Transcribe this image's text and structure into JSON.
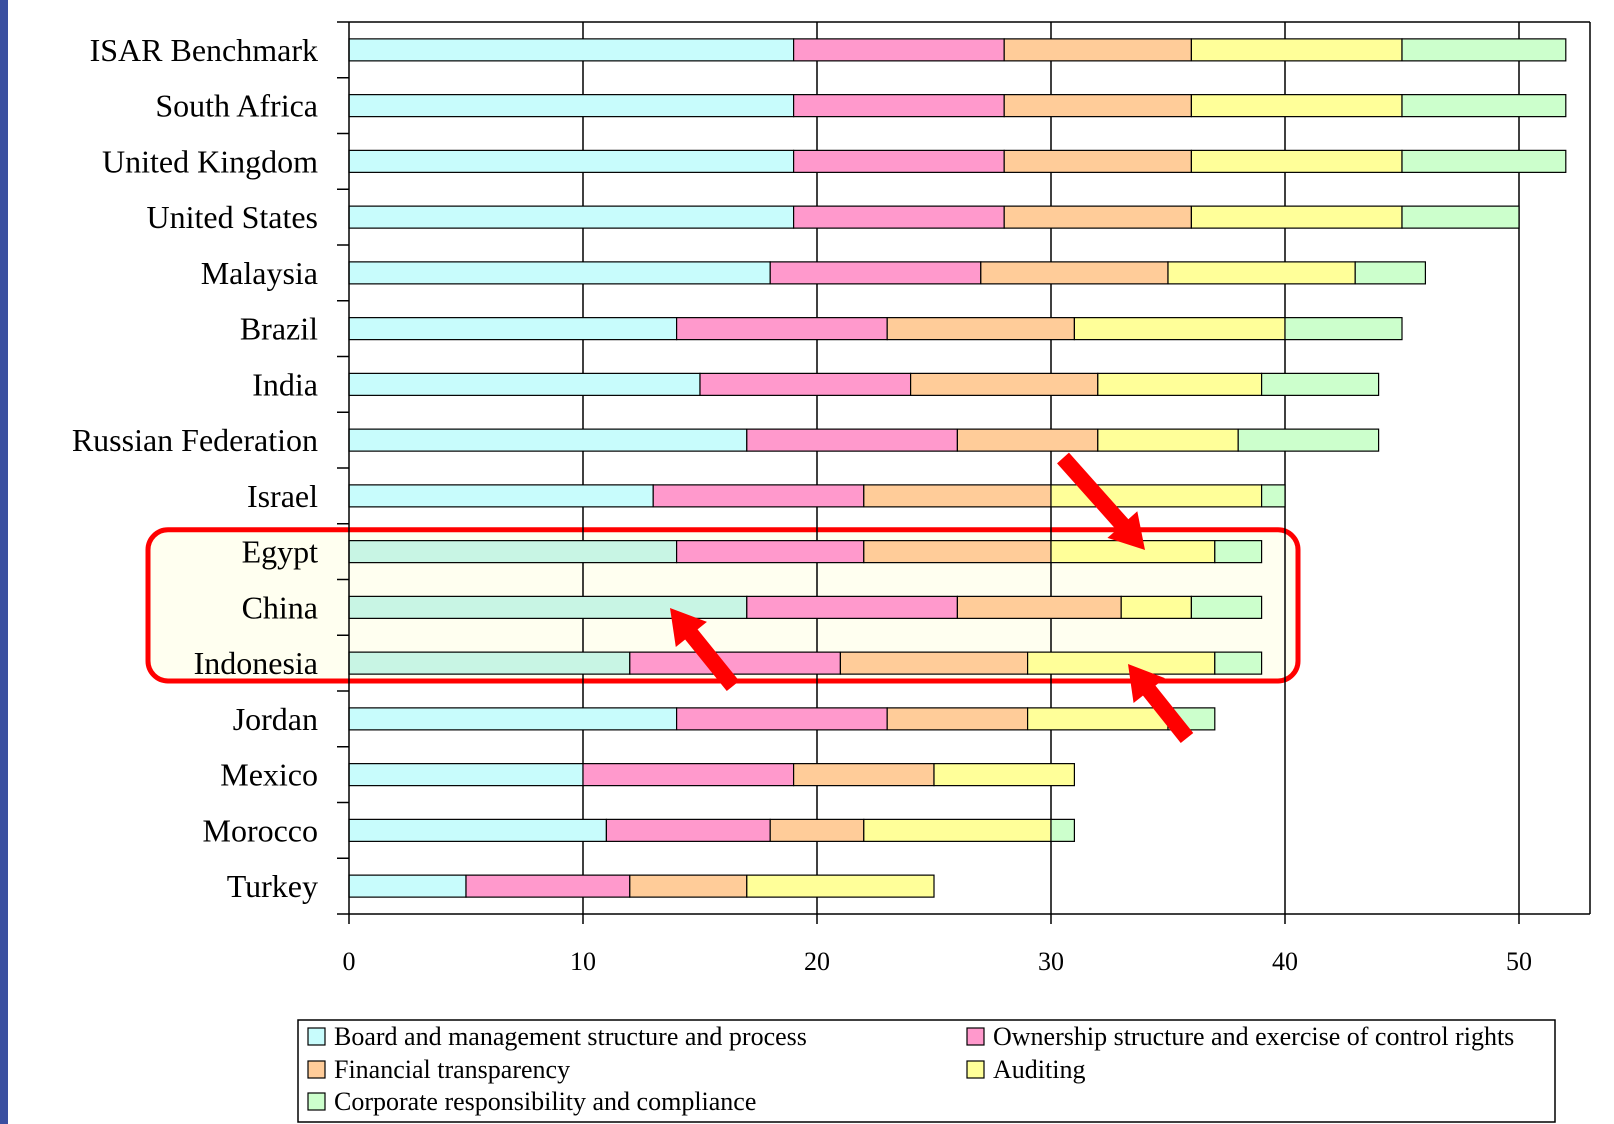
{
  "chart_data": {
    "type": "bar",
    "orientation": "horizontal",
    "stacked": true,
    "categories": [
      "ISAR Benchmark",
      "South Africa",
      "United Kingdom",
      "United States",
      "Malaysia",
      "Brazil",
      "India",
      "Russian Federation",
      "Israel",
      "Egypt",
      "China",
      "Indonesia",
      "Jordan",
      "Mexico",
      "Morocco",
      "Turkey"
    ],
    "series": [
      {
        "name": "Board and management structure and process",
        "color": "#c8fcfc",
        "values": [
          19,
          19,
          19,
          19,
          18,
          14,
          15,
          17,
          13,
          14,
          17,
          12,
          14,
          10,
          11,
          5
        ]
      },
      {
        "name": "Ownership structure and exercise of control rights",
        "color": "#ff99cc",
        "values": [
          9,
          9,
          9,
          9,
          9,
          9,
          9,
          9,
          9,
          8,
          9,
          9,
          9,
          9,
          7,
          7
        ]
      },
      {
        "name": "Financial transparency",
        "color": "#ffcc99",
        "values": [
          8,
          8,
          8,
          8,
          8,
          8,
          8,
          6,
          8,
          8,
          7,
          8,
          6,
          6,
          4,
          5
        ]
      },
      {
        "name": "Auditing",
        "color": "#ffff99",
        "values": [
          9,
          9,
          9,
          9,
          8,
          9,
          7,
          6,
          9,
          7,
          3,
          8,
          6,
          6,
          8,
          8
        ]
      },
      {
        "name": "Corporate responsibility and compliance",
        "color": "#ccffcc",
        "values": [
          7,
          7,
          7,
          5,
          3,
          5,
          5,
          6,
          1,
          2,
          3,
          2,
          2,
          0,
          1,
          0
        ]
      }
    ],
    "xlim": [
      0,
      52
    ],
    "xticks": [
      0,
      10,
      20,
      30,
      40,
      50
    ],
    "grid": true,
    "legend_position": "bottom",
    "annotations": {
      "highlight_box": [
        "Egypt",
        "China",
        "Indonesia"
      ],
      "highlight_color": "#ff0000",
      "arrow_color": "#ff0000"
    }
  }
}
